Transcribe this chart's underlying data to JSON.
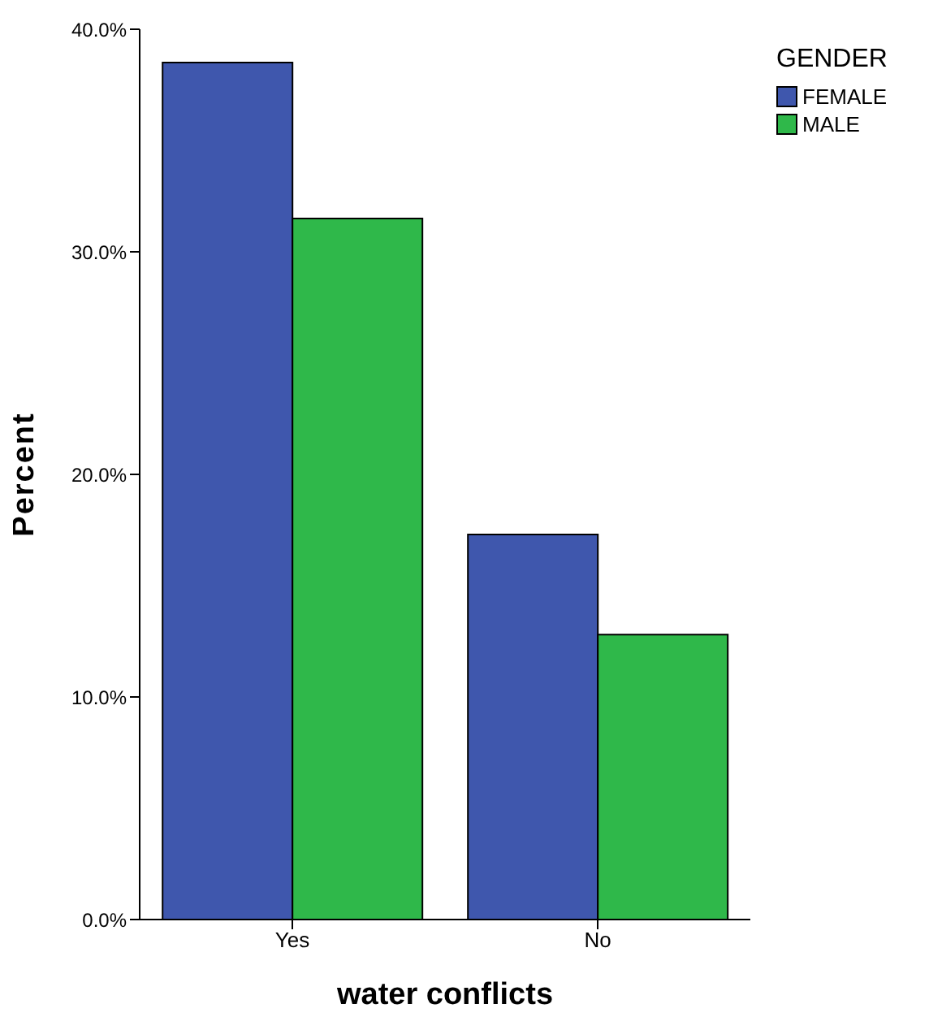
{
  "chart_data": {
    "type": "bar",
    "xlabel": "water conflicts",
    "ylabel": "Percent",
    "legend_title": "GENDER",
    "categories": [
      "Yes",
      "No"
    ],
    "series": [
      {
        "name": "FEMALE",
        "color": "#3f57ad",
        "values": [
          38.5,
          17.3
        ]
      },
      {
        "name": "MALE",
        "color": "#2fb84a",
        "values": [
          31.5,
          12.8
        ]
      }
    ],
    "ylim": [
      0,
      40
    ],
    "yticks": [
      {
        "value": 0,
        "label": "0.0%"
      },
      {
        "value": 10,
        "label": "10.0%"
      },
      {
        "value": 20,
        "label": "20.0%"
      },
      {
        "value": 30,
        "label": "30.0%"
      },
      {
        "value": 40,
        "label": "40.0%"
      }
    ],
    "grid": false,
    "legend": "top right"
  }
}
